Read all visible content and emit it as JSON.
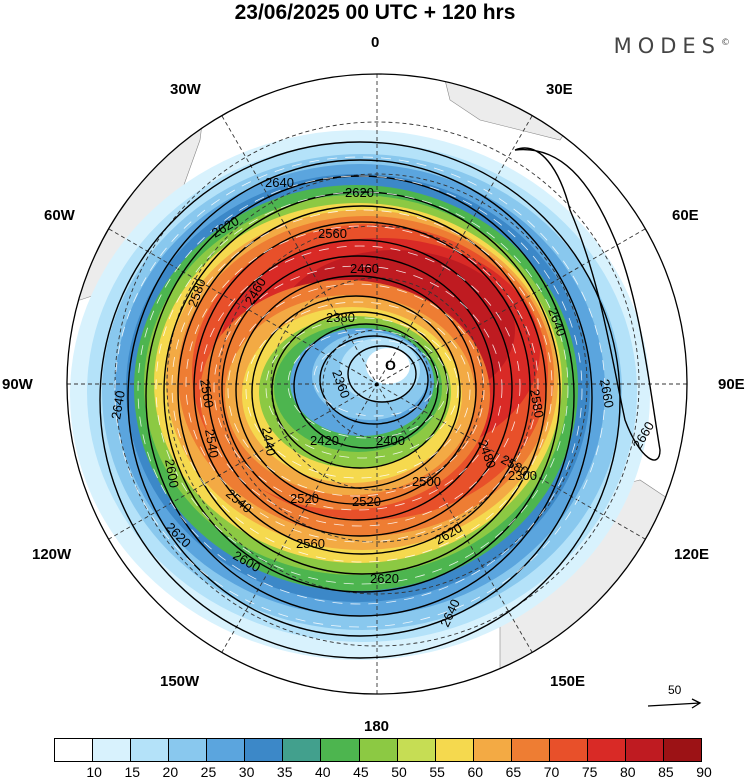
{
  "title": "23/06/2025  00 UTC  + 120 hrs",
  "brand": "MODES",
  "brand_mark": "©",
  "longitude_labels": {
    "top": "0",
    "bottom": "180",
    "left": "90W",
    "right": "90E",
    "w30": "30W",
    "e30": "30E",
    "w60": "60W",
    "e60": "60E",
    "w120": "120W",
    "e120": "120E",
    "w150": "150W",
    "e150": "150E"
  },
  "map": {
    "projection": "south polar stereographic",
    "center_marker": "•",
    "low_marker": "O",
    "contour_labels": [
      "2640",
      "2620",
      "2560",
      "2460",
      "2380",
      "2360",
      "2620",
      "2580",
      "2460",
      "2640",
      "2660",
      "2660",
      "2580",
      "2560",
      "2540",
      "2600",
      "2440",
      "2420",
      "2400",
      "2480",
      "2580",
      "2500",
      "2520",
      "2520",
      "2300",
      "2540",
      "2620",
      "2560",
      "2600",
      "2620",
      "2640",
      "2620",
      "2640"
    ]
  },
  "colorbar": {
    "labels": [
      "10",
      "15",
      "20",
      "25",
      "30",
      "35",
      "40",
      "45",
      "50",
      "55",
      "60",
      "65",
      "70",
      "75",
      "80",
      "85",
      "90"
    ],
    "colors": [
      "#ffffff",
      "#d8f2fd",
      "#b4e2f9",
      "#89c8ee",
      "#5ba5de",
      "#3c88c8",
      "#42a08d",
      "#4db54f",
      "#8cc943",
      "#c6dd54",
      "#f5d94e",
      "#f3aa44",
      "#ee7d33",
      "#e8502a",
      "#d92a26",
      "#bf1b21",
      "#9c1215"
    ]
  },
  "reference_vector": "50"
}
